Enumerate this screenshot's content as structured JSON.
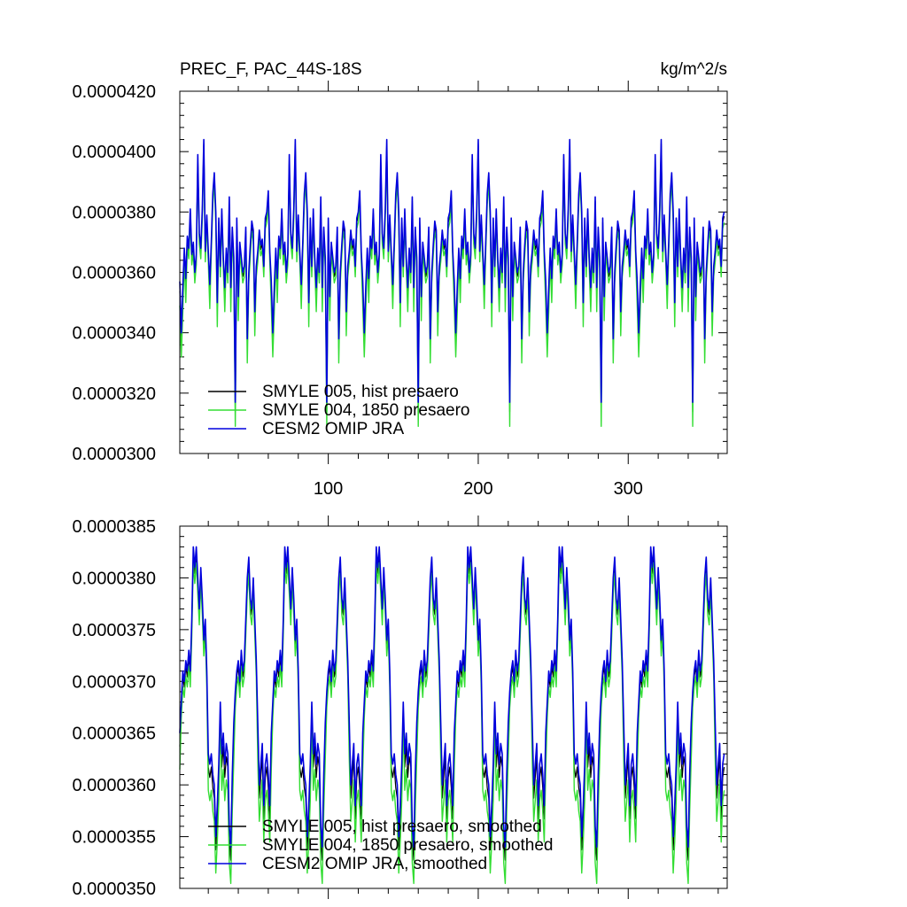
{
  "chart_data": [
    {
      "type": "line",
      "title_left": "PREC_F, PAC_44S-18S",
      "title_right": "kg/m^2/s",
      "xlabel": "",
      "ylabel": "",
      "xlim": [
        1,
        366
      ],
      "ylim": [
        3e-05,
        4.2e-05
      ],
      "x_ticks": [
        100,
        200,
        300
      ],
      "x_tick_labels": [
        "100",
        "200",
        "300"
      ],
      "y_ticks": [
        3e-05,
        3.2e-05,
        3.4e-05,
        3.6e-05,
        3.8e-05,
        4e-05,
        4.2e-05
      ],
      "y_tick_labels": [
        "0.0000300",
        "0.0000320",
        "0.0000340",
        "0.0000360",
        "0.0000380",
        "0.0000400",
        "0.0000420"
      ],
      "legend": [
        "SMYLE 005, hist presaero",
        "SMYLE 004, 1850 presaero",
        "CESM2 OMIP JRA"
      ],
      "legend_position": "bottom-left",
      "series_colors": [
        "#000000",
        "#33dd33",
        "#0000dd"
      ],
      "period_days": 61,
      "period_values": [
        3.57e-05,
        3.4e-05,
        3.55e-05,
        3.68e-05,
        3.58e-05,
        3.72e-05,
        3.68e-05,
        3.81e-05,
        3.66e-05,
        3.7e-05,
        3.6e-05,
        3.66e-05,
        3.99e-05,
        3.73e-05,
        3.68e-05,
        3.81e-05,
        4.04e-05,
        3.67e-05,
        3.79e-05,
        3.67e-05,
        3.56e-05,
        3.7e-05,
        3.86e-05,
        3.93e-05,
        3.8e-05,
        3.5e-05,
        3.78e-05,
        3.62e-05,
        3.81e-05,
        3.65e-05,
        3.55e-05,
        3.68e-05,
        3.6e-05,
        3.85e-05,
        3.55e-05,
        3.75e-05,
        3.65e-05,
        3.17e-05,
        3.78e-05,
        3.52e-05,
        3.7e-05,
        3.65e-05,
        3.6e-05,
        3.62e-05,
        3.75e-05,
        3.38e-05,
        3.6e-05,
        3.69e-05,
        3.77e-05,
        3.74e-05,
        3.47e-05,
        3.62e-05,
        3.67e-05,
        3.74e-05,
        3.69e-05,
        3.71e-05,
        3.62e-05,
        3.78e-05,
        3.8e-05,
        3.87e-05,
        3.67e-05
      ],
      "offsets": {
        "smyle005": -2e-07,
        "smyle004": -5e-07,
        "jra": 0.0
      }
    },
    {
      "type": "line",
      "title_left": "",
      "title_right": "",
      "xlabel": "",
      "ylabel": "",
      "xlim": [
        1,
        366
      ],
      "ylim": [
        3.5e-05,
        3.85e-05
      ],
      "x_ticks": [
        100,
        200,
        300
      ],
      "x_tick_labels": [],
      "y_ticks": [
        3.5e-05,
        3.55e-05,
        3.6e-05,
        3.65e-05,
        3.7e-05,
        3.75e-05,
        3.8e-05,
        3.85e-05
      ],
      "y_tick_labels": [
        "0.0000350",
        "0.0000355",
        "0.0000360",
        "0.0000365",
        "0.0000370",
        "0.0000375",
        "0.0000380",
        "0.0000385"
      ],
      "legend": [
        "SMYLE 005, hist presaero, smoothed",
        "SMYLE 004, 1850 presaero, smoothed",
        "CESM2 OMIP JRA, smoothed"
      ],
      "legend_position": "bottom-left",
      "series_colors": [
        "#000000",
        "#33dd33",
        "#0000dd"
      ],
      "period_days": 61,
      "period_values": [
        3.65e-05,
        3.68e-05,
        3.71e-05,
        3.7e-05,
        3.72e-05,
        3.71e-05,
        3.73e-05,
        3.71e-05,
        3.76e-05,
        3.83e-05,
        3.81e-05,
        3.83e-05,
        3.8e-05,
        3.77e-05,
        3.81e-05,
        3.78e-05,
        3.74e-05,
        3.76e-05,
        3.71e-05,
        3.63e-05,
        3.62e-05,
        3.63e-05,
        3.61e-05,
        3.6e-05,
        3.55e-05,
        3.58e-05,
        3.62e-05,
        3.68e-05,
        3.63e-05,
        3.65e-05,
        3.62e-05,
        3.64e-05,
        3.63e-05,
        3.56e-05,
        3.54e-05,
        3.61e-05,
        3.66e-05,
        3.69e-05,
        3.71e-05,
        3.72e-05,
        3.7e-05,
        3.73e-05,
        3.71e-05,
        3.72e-05,
        3.76e-05,
        3.8e-05,
        3.82e-05,
        3.78e-05,
        3.77e-05,
        3.8e-05,
        3.76e-05,
        3.72e-05,
        3.66e-05,
        3.6e-05,
        3.62e-05,
        3.64e-05,
        3.58e-05,
        3.62e-05,
        3.63e-05,
        3.61e-05,
        3.58e-05
      ],
      "offsets": {
        "smyle005": -8e-08,
        "smyle004": -2.2e-07,
        "jra": 0.0
      }
    }
  ]
}
